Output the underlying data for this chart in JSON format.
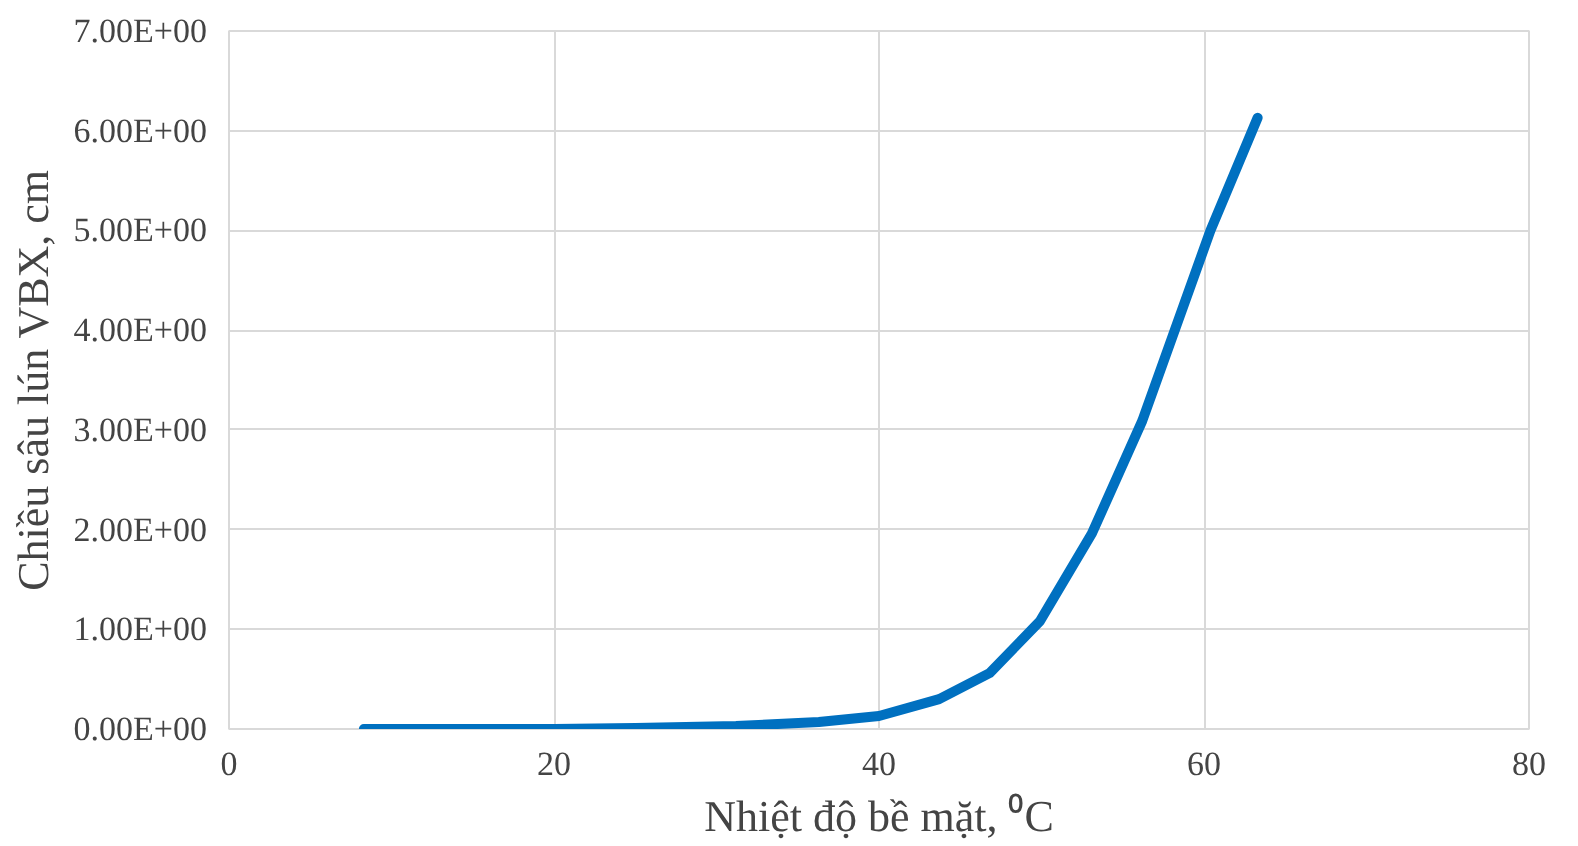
{
  "chart_data": {
    "type": "line",
    "xlabel": "Nhiệt độ bề mặt, ⁰C",
    "ylabel": "Chiều sâu lún VBX, cm",
    "x": [
      8.3,
      15,
      20,
      25,
      31.2,
      36.3,
      40,
      43.7,
      46.8,
      49.9,
      53.1,
      56.2,
      60.4,
      63.3
    ],
    "series": [
      {
        "color": "#0070c0",
        "values": [
          0,
          0,
          0,
          0.01,
          0.03,
          0.07,
          0.13,
          0.3,
          0.56,
          1.08,
          1.96,
          3.09,
          5.0,
          6.13
        ]
      }
    ],
    "xlim": [
      0,
      80
    ],
    "xticks": [
      0,
      20,
      40,
      60,
      80
    ],
    "ylim": [
      0,
      7
    ],
    "yticks": [
      {
        "value": 0,
        "label": "0.00E+00"
      },
      {
        "value": 1,
        "label": "1.00E+00"
      },
      {
        "value": 2,
        "label": "2.00E+00"
      },
      {
        "value": 3,
        "label": "3.00E+00"
      },
      {
        "value": 4,
        "label": "4.00E+00"
      },
      {
        "value": 5,
        "label": "5.00E+00"
      },
      {
        "value": 6,
        "label": "6.00E+00"
      },
      {
        "value": 7,
        "label": "7.00E+00"
      }
    ],
    "grid": true,
    "marker": "none",
    "line_style": "solid"
  }
}
